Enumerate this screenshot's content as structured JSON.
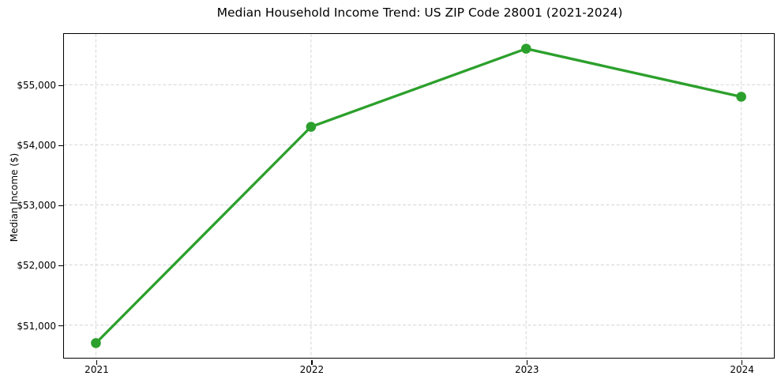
{
  "chart_data": {
    "type": "line",
    "title": "Median Household Income Trend: US ZIP Code 28001 (2021-2024)",
    "xlabel": "",
    "ylabel": "Median Income ($)",
    "categories": [
      "2021",
      "2022",
      "2023",
      "2024"
    ],
    "values": [
      50700,
      54300,
      55600,
      54800
    ],
    "y_tick_values": [
      51000,
      52000,
      53000,
      54000,
      55000
    ],
    "y_tick_labels": [
      "$51,000",
      "$52,000",
      "$53,000",
      "$54,000",
      "$55,000"
    ],
    "ylim": [
      50455,
      55845
    ],
    "grid": true,
    "grid_style": "dashed",
    "legend": "none",
    "line_color": "#2ca02c",
    "marker": "circle"
  }
}
